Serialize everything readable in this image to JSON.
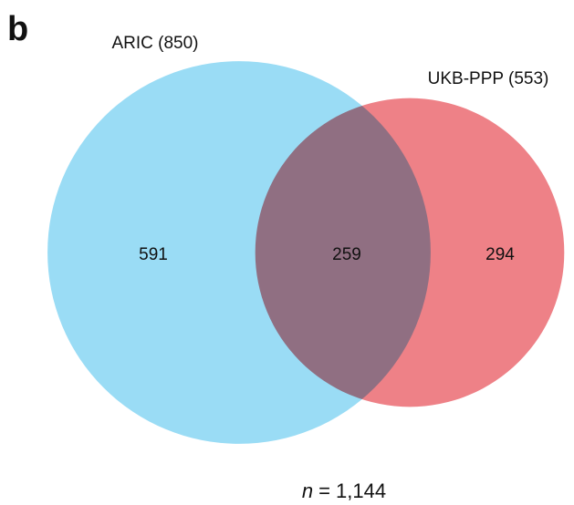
{
  "chart_data": {
    "type": "venn",
    "panel_label": "b",
    "sets": [
      {
        "label": "ARIC (850)",
        "size": 850,
        "color": "#9adcf5"
      },
      {
        "label": "UKB-PPP (553)",
        "size": 553,
        "color": "#ee8187"
      }
    ],
    "regions": [
      "ARIC only",
      "both",
      "UKB-PPP only"
    ],
    "values": [
      591,
      259,
      294
    ],
    "total_symbol": "n",
    "total_relation": "=",
    "total": {
      "value": 1144,
      "label": "1,144"
    }
  }
}
